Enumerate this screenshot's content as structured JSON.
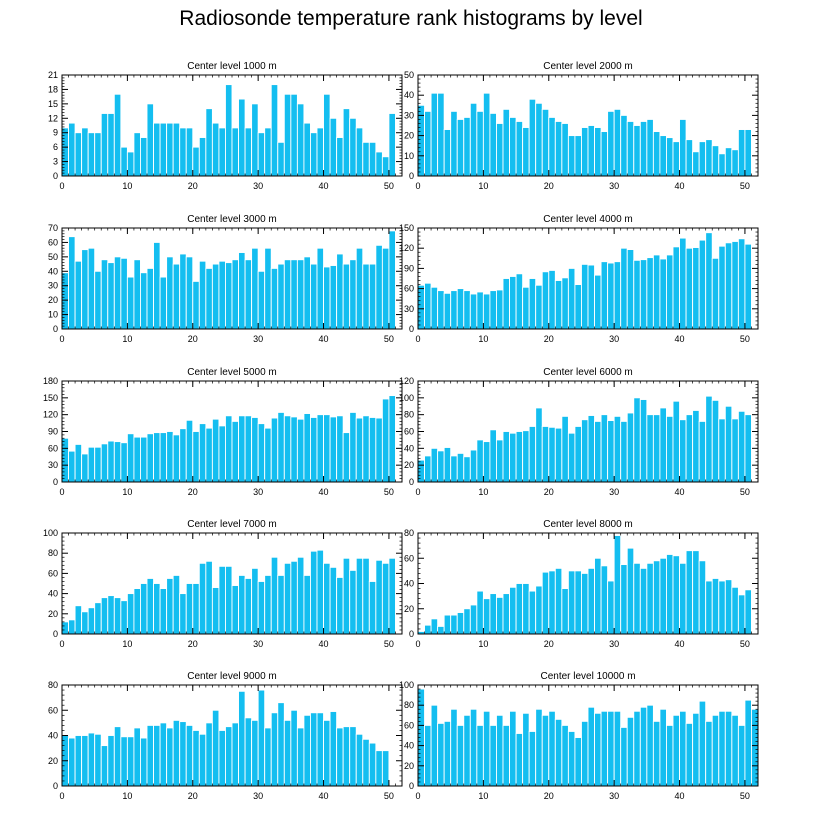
{
  "title": "Radiosonde temperature rank histograms by level",
  "colors": {
    "bar": "#14BEF0",
    "bar_stroke": "#FFFFFF",
    "axis": "#000000"
  },
  "chart_data": [
    {
      "type": "bar",
      "title": "Center level 1000 m",
      "xlim": [
        0,
        52
      ],
      "xticks": [
        0,
        10,
        20,
        30,
        40,
        50
      ],
      "ylim": [
        0,
        21
      ],
      "yticks": [
        0,
        3,
        6,
        9,
        12,
        15,
        18,
        21
      ],
      "values": [
        10,
        11,
        9,
        10,
        9,
        9,
        13,
        13,
        17,
        6,
        5,
        9,
        8,
        15,
        11,
        11,
        11,
        11,
        10,
        10,
        6,
        8,
        14,
        11,
        10,
        19,
        10,
        16,
        10,
        15,
        9,
        10,
        19,
        7,
        17,
        17,
        15,
        11,
        9,
        10,
        17,
        12,
        8,
        14,
        12,
        10,
        7,
        7,
        5,
        4,
        13
      ]
    },
    {
      "type": "bar",
      "title": "Center level 2000 m",
      "xlim": [
        0,
        52
      ],
      "xticks": [
        0,
        10,
        20,
        30,
        40,
        50
      ],
      "ylim": [
        0,
        50
      ],
      "yticks": [
        0,
        10,
        20,
        30,
        40,
        50
      ],
      "values": [
        35,
        32,
        41,
        41,
        23,
        32,
        28,
        29,
        36,
        32,
        41,
        31,
        26,
        33,
        29,
        27,
        24,
        38,
        36,
        33,
        29,
        27,
        26,
        20,
        20,
        24,
        25,
        24,
        22,
        32,
        33,
        30,
        27,
        25,
        27,
        28,
        22,
        20,
        19,
        17,
        28,
        18,
        12,
        17,
        18,
        15,
        11,
        14,
        13,
        23,
        23
      ]
    },
    {
      "type": "bar",
      "title": "Center level 3000 m",
      "xlim": [
        0,
        52
      ],
      "xticks": [
        0,
        10,
        20,
        30,
        40,
        50
      ],
      "ylim": [
        0,
        70
      ],
      "yticks": [
        0,
        10,
        20,
        30,
        40,
        50,
        60,
        70
      ],
      "values": [
        39,
        64,
        47,
        55,
        56,
        40,
        48,
        46,
        50,
        49,
        36,
        48,
        39,
        42,
        60,
        36,
        50,
        45,
        52,
        50,
        33,
        47,
        42,
        45,
        47,
        46,
        48,
        53,
        48,
        56,
        40,
        56,
        42,
        45,
        48,
        48,
        48,
        50,
        45,
        56,
        43,
        44,
        52,
        45,
        48,
        56,
        45,
        45,
        58,
        56,
        68
      ]
    },
    {
      "type": "bar",
      "title": "Center level 4000 m",
      "xlim": [
        0,
        52
      ],
      "xticks": [
        0,
        10,
        20,
        30,
        40,
        50
      ],
      "ylim": [
        0,
        150
      ],
      "yticks": [
        0,
        30,
        60,
        90,
        120,
        150
      ],
      "values": [
        65,
        68,
        62,
        57,
        53,
        57,
        60,
        57,
        52,
        55,
        52,
        57,
        58,
        75,
        78,
        82,
        62,
        75,
        65,
        85,
        87,
        72,
        76,
        90,
        66,
        96,
        95,
        80,
        100,
        98,
        100,
        120,
        118,
        102,
        103,
        106,
        110,
        104,
        110,
        122,
        135,
        120,
        121,
        132,
        143,
        105,
        123,
        128,
        130,
        134,
        126
      ]
    },
    {
      "type": "bar",
      "title": "Center level 5000 m",
      "xlim": [
        0,
        52
      ],
      "xticks": [
        0,
        10,
        20,
        30,
        40,
        50
      ],
      "ylim": [
        0,
        180
      ],
      "yticks": [
        0,
        30,
        60,
        90,
        120,
        150,
        180
      ],
      "values": [
        78,
        55,
        67,
        50,
        62,
        62,
        68,
        73,
        72,
        70,
        86,
        80,
        80,
        86,
        88,
        88,
        90,
        84,
        95,
        110,
        90,
        104,
        96,
        112,
        100,
        118,
        108,
        118,
        118,
        115,
        104,
        96,
        114,
        124,
        118,
        116,
        112,
        122,
        115,
        120,
        120,
        116,
        118,
        88,
        124,
        114,
        118,
        115,
        114,
        148,
        154
      ]
    },
    {
      "type": "bar",
      "title": "Center level 6000 m",
      "xlim": [
        0,
        52
      ],
      "xticks": [
        0,
        10,
        20,
        30,
        40,
        50
      ],
      "ylim": [
        0,
        120
      ],
      "yticks": [
        0,
        20,
        40,
        60,
        80,
        100,
        120
      ],
      "values": [
        26,
        31,
        40,
        37,
        41,
        31,
        34,
        30,
        38,
        50,
        48,
        62,
        50,
        60,
        58,
        60,
        61,
        66,
        88,
        66,
        65,
        64,
        78,
        58,
        66,
        74,
        79,
        72,
        80,
        73,
        78,
        72,
        82,
        100,
        98,
        80,
        80,
        88,
        78,
        96,
        74,
        80,
        85,
        72,
        102,
        97,
        75,
        90,
        75,
        84,
        80
      ]
    },
    {
      "type": "bar",
      "title": "Center level 7000 m",
      "xlim": [
        0,
        52
      ],
      "xticks": [
        0,
        10,
        20,
        30,
        40,
        50
      ],
      "ylim": [
        0,
        100
      ],
      "yticks": [
        0,
        20,
        40,
        60,
        80,
        100
      ],
      "values": [
        12,
        14,
        28,
        22,
        26,
        31,
        36,
        38,
        36,
        33,
        40,
        45,
        50,
        55,
        50,
        45,
        55,
        58,
        40,
        50,
        50,
        70,
        72,
        46,
        67,
        67,
        48,
        58,
        55,
        65,
        52,
        58,
        76,
        58,
        70,
        72,
        76,
        58,
        82,
        83,
        70,
        66,
        56,
        75,
        63,
        75,
        75,
        52,
        73,
        70,
        75
      ]
    },
    {
      "type": "bar",
      "title": "Center level 8000 m",
      "xlim": [
        0,
        52
      ],
      "xticks": [
        0,
        10,
        20,
        30,
        40,
        50
      ],
      "ylim": [
        0,
        80
      ],
      "yticks": [
        0,
        20,
        40,
        60,
        80
      ],
      "values": [
        2,
        7,
        12,
        6,
        15,
        15,
        17,
        20,
        23,
        34,
        28,
        32,
        29,
        32,
        37,
        40,
        40,
        34,
        38,
        49,
        50,
        52,
        36,
        50,
        50,
        48,
        52,
        60,
        54,
        42,
        78,
        55,
        68,
        56,
        52,
        56,
        58,
        60,
        63,
        62,
        56,
        66,
        66,
        58,
        42,
        44,
        42,
        43,
        37,
        31,
        35
      ]
    },
    {
      "type": "bar",
      "title": "Center level 9000 m",
      "xlim": [
        0,
        52
      ],
      "xticks": [
        0,
        10,
        20,
        30,
        40,
        50
      ],
      "ylim": [
        0,
        80
      ],
      "yticks": [
        0,
        20,
        40,
        60,
        80
      ],
      "values": [
        40,
        38,
        40,
        40,
        42,
        41,
        32,
        40,
        47,
        39,
        39,
        46,
        38,
        48,
        48,
        50,
        46,
        52,
        51,
        48,
        44,
        41,
        50,
        60,
        44,
        47,
        50,
        75,
        54,
        52,
        76,
        46,
        58,
        66,
        52,
        60,
        46,
        56,
        58,
        58,
        52,
        59,
        46,
        47,
        47,
        41,
        37,
        34,
        28,
        28,
        0
      ]
    },
    {
      "type": "bar",
      "title": "Center level 10000 m",
      "xlim": [
        0,
        52
      ],
      "xticks": [
        0,
        10,
        20,
        30,
        40,
        50
      ],
      "ylim": [
        0,
        100
      ],
      "yticks": [
        0,
        20,
        40,
        60,
        80,
        100
      ],
      "values": [
        96,
        60,
        80,
        62,
        64,
        76,
        60,
        70,
        76,
        60,
        74,
        60,
        70,
        60,
        74,
        52,
        72,
        54,
        76,
        70,
        74,
        66,
        60,
        54,
        48,
        64,
        78,
        72,
        74,
        74,
        74,
        58,
        68,
        74,
        78,
        80,
        64,
        76,
        60,
        70,
        74,
        62,
        72,
        84,
        64,
        70,
        74,
        74,
        70,
        60,
        85,
        76
      ]
    }
  ]
}
